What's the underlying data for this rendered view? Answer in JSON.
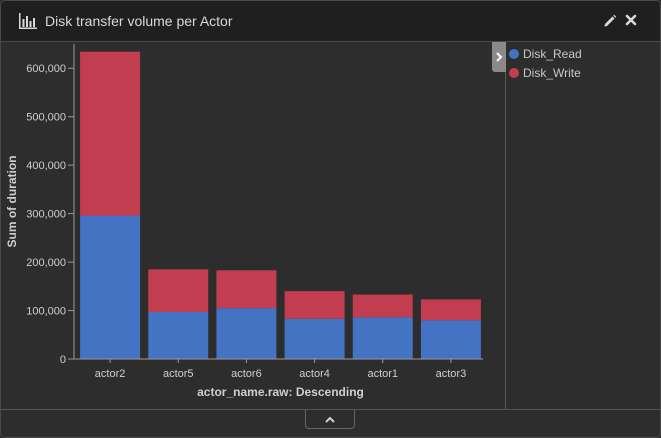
{
  "header": {
    "title": "Disk transfer volume per Actor",
    "title_icon": "bar-chart-icon",
    "edit_icon": "pencil-icon",
    "close_icon": "close-icon"
  },
  "legend": {
    "toggle_icon": "chevron-right-icon",
    "items": [
      {
        "label": "Disk_Read",
        "color": "#4573c4"
      },
      {
        "label": "Disk_Write",
        "color": "#c33d50"
      }
    ]
  },
  "footer": {
    "toggle_icon": "chevron-up-icon"
  },
  "colors": {
    "accent_read": "#4573c4",
    "accent_write": "#c33d50",
    "background": "#2d2d2d"
  },
  "chart_data": {
    "type": "bar",
    "stacked": true,
    "categories": [
      "actor2",
      "actor5",
      "actor6",
      "actor4",
      "actor1",
      "actor3"
    ],
    "series": [
      {
        "name": "Disk_Read",
        "values": [
          296000,
          97000,
          105000,
          83000,
          86000,
          80000
        ]
      },
      {
        "name": "Disk_Write",
        "values": [
          338000,
          88000,
          78000,
          57000,
          47000,
          43000
        ]
      }
    ],
    "ylabel": "Sum of duration",
    "xlabel": "actor_name.raw: Descending",
    "ylim": [
      0,
      650000
    ],
    "yticks": [
      0,
      100000,
      200000,
      300000,
      400000,
      500000,
      600000
    ],
    "ytick_labels": [
      "0",
      "100,000",
      "200,000",
      "300,000",
      "400,000",
      "500,000",
      "600,000"
    ],
    "grid": false,
    "legend_position": "right"
  }
}
